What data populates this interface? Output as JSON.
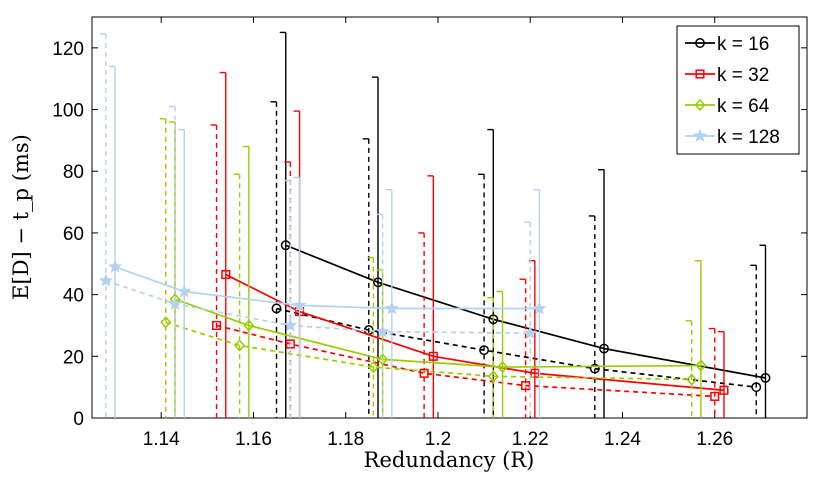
{
  "chart_data": {
    "type": "line",
    "xlabel": "Redundancy (R)",
    "ylabel": "E[D] − t_p (ms)",
    "xlim": [
      1.125,
      1.28
    ],
    "ylim": [
      0,
      130
    ],
    "xticks": [
      1.14,
      1.16,
      1.18,
      1.2,
      1.22,
      1.24,
      1.26
    ],
    "xtick_labels": [
      "1.14",
      "1.16",
      "1.18",
      "1.2",
      "1.22",
      "1.24",
      "1.26"
    ],
    "yticks": [
      0,
      20,
      40,
      60,
      80,
      100,
      120
    ],
    "ytick_labels": [
      "0",
      "20",
      "40",
      "60",
      "80",
      "100",
      "120"
    ],
    "legend_position": "top-right",
    "series": [
      {
        "name": "k = 16",
        "color": "#000000",
        "marker": "circle",
        "solid": {
          "x": [
            1.167,
            1.187,
            1.212,
            1.236,
            1.271
          ],
          "y": [
            56,
            44,
            32,
            22.5,
            13
          ],
          "err_top": [
            125,
            110.5,
            93.5,
            80.5,
            56
          ]
        },
        "dashed": {
          "x": [
            1.165,
            1.185,
            1.21,
            1.234,
            1.269
          ],
          "y": [
            35.5,
            28.5,
            22,
            16,
            10
          ],
          "err_top": [
            102.5,
            90.5,
            79,
            65.5,
            49.5
          ]
        }
      },
      {
        "name": "k = 32",
        "color": "#ff0000",
        "marker": "square",
        "solid": {
          "x": [
            1.154,
            1.17,
            1.199,
            1.221,
            1.262
          ],
          "y": [
            46.5,
            34.5,
            20,
            14.5,
            9
          ],
          "err_top": [
            112,
            99.5,
            78.5,
            51,
            28
          ]
        },
        "dashed": {
          "x": [
            1.152,
            1.168,
            1.197,
            1.219,
            1.26
          ],
          "y": [
            30,
            24,
            14.5,
            10.5,
            7
          ],
          "err_top": [
            95,
            83,
            60,
            45,
            29
          ]
        }
      },
      {
        "name": "k = 64",
        "color": "#99cc00",
        "marker": "diamond",
        "solid": {
          "x": [
            1.143,
            1.159,
            1.188,
            1.214,
            1.257
          ],
          "y": [
            38.5,
            30,
            19,
            16.5,
            17
          ],
          "err_top": [
            96,
            88,
            48,
            41,
            51
          ]
        },
        "dashed": {
          "x": [
            1.141,
            1.157,
            1.186,
            1.212,
            1.255
          ],
          "y": [
            31,
            23.5,
            16.5,
            13.5,
            12.5
          ],
          "err_top": [
            97,
            79,
            52,
            39,
            31.5
          ]
        }
      },
      {
        "name": "k = 128",
        "color": "#b3d1f0",
        "marker": "star",
        "solid": {
          "x": [
            1.13,
            1.145,
            1.17,
            1.19,
            1.222
          ],
          "y": [
            49,
            41,
            36.5,
            35.5,
            35.5
          ],
          "err_top": [
            114,
            93.5,
            78,
            74,
            74
          ]
        },
        "dashed": {
          "x": [
            1.128,
            1.143,
            1.168,
            1.188,
            1.22
          ],
          "y": [
            44.5,
            37,
            30,
            28,
            27.5
          ],
          "err_top": [
            124.5,
            101,
            77,
            66,
            63.5
          ]
        }
      }
    ]
  }
}
